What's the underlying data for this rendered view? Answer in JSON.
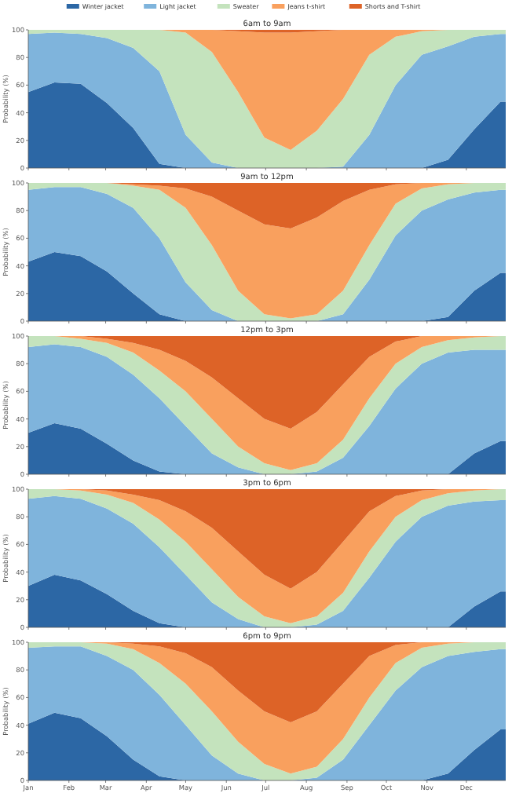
{
  "chart_data": [
    {
      "type": "area",
      "stacked": true,
      "title": "6am to 9am",
      "ylabel": "Probability (%)",
      "legend": "top",
      "tick_labels": "y",
      "xlim": [
        "--01-01",
        "--12-31"
      ],
      "xticks": [
        {
          "value": "--01-01",
          "label": null
        },
        {
          "value": "--02-01",
          "label": null
        },
        {
          "value": "--03-01",
          "label": null
        },
        {
          "value": "--04-01",
          "label": null
        },
        {
          "value": "--05-01",
          "label": null
        },
        {
          "value": "--06-01",
          "label": null
        },
        {
          "value": "--07-01",
          "label": null
        },
        {
          "value": "--08-01",
          "label": null
        },
        {
          "value": "--09-01",
          "label": null
        },
        {
          "value": "--10-01",
          "label": null
        },
        {
          "value": "--11-01",
          "label": null
        },
        {
          "value": "--12-01",
          "label": null
        }
      ],
      "ylim": [
        0,
        100
      ],
      "yticks": [
        0,
        20,
        40,
        60,
        80,
        100
      ],
      "x": [
        "--01-01",
        "--01-21",
        "--02-10",
        "--03-02",
        "--03-22",
        "--04-11",
        "--05-01",
        "--05-21",
        "--06-10",
        "--06-30",
        "--07-20",
        "--08-09",
        "--08-29",
        "--09-18",
        "--10-08",
        "--10-28",
        "--11-17",
        "--12-07",
        "--12-27",
        "--12-31"
      ],
      "series": [
        {
          "name": "Winter jacket",
          "color": "#2c67a5",
          "values": [
            55,
            62,
            61,
            47,
            29,
            3,
            0,
            0,
            0,
            0,
            0,
            0,
            0,
            0,
            0,
            0,
            6,
            28,
            48,
            48
          ]
        },
        {
          "name": "Light jacket",
          "color": "#7fb4dc",
          "values": [
            42,
            36,
            36,
            47,
            58,
            67,
            24,
            4,
            0,
            0,
            0,
            0,
            1,
            24,
            60,
            82,
            82,
            67,
            49,
            49
          ]
        },
        {
          "name": "Sweater",
          "color": "#c4e3bd",
          "values": [
            3,
            2,
            3,
            6,
            13,
            30,
            74,
            80,
            55,
            22,
            13,
            27,
            49,
            58,
            35,
            17,
            12,
            5,
            3,
            3
          ]
        },
        {
          "name": "Jeans t-shirt",
          "color": "#f9a05e",
          "values": [
            0,
            0,
            0,
            0,
            0,
            0,
            2,
            16,
            44,
            76,
            85,
            72,
            50,
            18,
            5,
            1,
            0,
            0,
            0,
            0
          ]
        },
        {
          "name": "Shorts and T-shirt",
          "color": "#dd6327",
          "values": [
            0,
            0,
            0,
            0,
            0,
            0,
            0,
            0,
            1,
            2,
            2,
            1,
            0,
            0,
            0,
            0,
            0,
            0,
            0,
            0
          ]
        }
      ]
    },
    {
      "type": "area",
      "stacked": true,
      "title": "9am to 12pm",
      "ylabel": "Probability (%)",
      "tick_labels": "y",
      "xlim": [
        "--01-01",
        "--12-31"
      ],
      "xticks": [
        {
          "value": "--01-01",
          "label": null
        },
        {
          "value": "--02-01",
          "label": null
        },
        {
          "value": "--03-01",
          "label": null
        },
        {
          "value": "--04-01",
          "label": null
        },
        {
          "value": "--05-01",
          "label": null
        },
        {
          "value": "--06-01",
          "label": null
        },
        {
          "value": "--07-01",
          "label": null
        },
        {
          "value": "--08-01",
          "label": null
        },
        {
          "value": "--09-01",
          "label": null
        },
        {
          "value": "--10-01",
          "label": null
        },
        {
          "value": "--11-01",
          "label": null
        },
        {
          "value": "--12-01",
          "label": null
        }
      ],
      "ylim": [
        0,
        100
      ],
      "yticks": [
        0,
        20,
        40,
        60,
        80,
        100
      ],
      "x": [
        "--01-01",
        "--01-21",
        "--02-10",
        "--03-02",
        "--03-22",
        "--04-11",
        "--05-01",
        "--05-21",
        "--06-10",
        "--06-30",
        "--07-20",
        "--08-09",
        "--08-29",
        "--09-18",
        "--10-08",
        "--10-28",
        "--11-17",
        "--12-07",
        "--12-27",
        "--12-31"
      ],
      "series": [
        {
          "color": "#2c67a5",
          "values": [
            43,
            50,
            47,
            36,
            20,
            5,
            0,
            0,
            0,
            0,
            0,
            0,
            0,
            0,
            0,
            0,
            3,
            22,
            35,
            35
          ]
        },
        {
          "color": "#7fb4dc",
          "values": [
            52,
            47,
            50,
            56,
            62,
            55,
            28,
            8,
            0,
            0,
            0,
            0,
            5,
            30,
            62,
            80,
            85,
            71,
            60,
            60
          ]
        },
        {
          "color": "#c4e3bd",
          "values": [
            5,
            3,
            3,
            8,
            16,
            35,
            54,
            47,
            22,
            5,
            2,
            5,
            17,
            25,
            23,
            16,
            11,
            7,
            5,
            5
          ]
        },
        {
          "color": "#f9a05e",
          "values": [
            0,
            0,
            0,
            0,
            1,
            3,
            14,
            35,
            58,
            65,
            65,
            70,
            65,
            40,
            14,
            4,
            1,
            0,
            0,
            0
          ]
        },
        {
          "color": "#dd6327",
          "values": [
            0,
            0,
            0,
            0,
            1,
            2,
            4,
            10,
            20,
            30,
            33,
            25,
            13,
            5,
            1,
            0,
            0,
            0,
            0,
            0
          ]
        }
      ]
    },
    {
      "type": "area",
      "stacked": true,
      "title": "12pm to 3pm",
      "ylabel": "Probability (%)",
      "tick_labels": "y",
      "xlim": [
        "--01-01",
        "--12-31"
      ],
      "xticks": [
        {
          "value": "--01-01",
          "label": null
        },
        {
          "value": "--02-01",
          "label": null
        },
        {
          "value": "--03-01",
          "label": null
        },
        {
          "value": "--04-01",
          "label": null
        },
        {
          "value": "--05-01",
          "label": null
        },
        {
          "value": "--06-01",
          "label": null
        },
        {
          "value": "--07-01",
          "label": null
        },
        {
          "value": "--08-01",
          "label": null
        },
        {
          "value": "--09-01",
          "label": null
        },
        {
          "value": "--10-01",
          "label": null
        },
        {
          "value": "--11-01",
          "label": null
        },
        {
          "value": "--12-01",
          "label": null
        }
      ],
      "ylim": [
        0,
        100
      ],
      "yticks": [
        0,
        20,
        40,
        60,
        80,
        100
      ],
      "x": [
        "--01-01",
        "--01-21",
        "--02-10",
        "--03-02",
        "--03-22",
        "--04-11",
        "--05-01",
        "--05-21",
        "--06-10",
        "--06-30",
        "--07-20",
        "--08-09",
        "--08-29",
        "--09-18",
        "--10-08",
        "--10-28",
        "--11-17",
        "--12-07",
        "--12-27",
        "--12-31"
      ],
      "series": [
        {
          "color": "#2c67a5",
          "values": [
            30,
            37,
            33,
            22,
            10,
            2,
            0,
            0,
            0,
            0,
            0,
            0,
            0,
            0,
            0,
            0,
            0,
            15,
            24,
            24
          ]
        },
        {
          "color": "#7fb4dc",
          "values": [
            62,
            57,
            59,
            63,
            62,
            53,
            35,
            15,
            5,
            0,
            0,
            2,
            12,
            35,
            62,
            80,
            88,
            75,
            66,
            66
          ]
        },
        {
          "color": "#c4e3bd",
          "values": [
            8,
            6,
            6,
            10,
            16,
            20,
            25,
            25,
            15,
            8,
            3,
            6,
            13,
            20,
            18,
            12,
            9,
            9,
            10,
            10
          ]
        },
        {
          "color": "#f9a05e",
          "values": [
            0,
            0,
            2,
            3,
            7,
            15,
            22,
            30,
            35,
            32,
            30,
            37,
            40,
            30,
            16,
            8,
            3,
            1,
            0,
            0
          ]
        },
        {
          "color": "#dd6327",
          "values": [
            0,
            0,
            0,
            2,
            5,
            10,
            18,
            30,
            45,
            60,
            67,
            55,
            35,
            15,
            4,
            0,
            0,
            0,
            0,
            0
          ]
        }
      ]
    },
    {
      "type": "area",
      "stacked": true,
      "title": "3pm to 6pm",
      "ylabel": "Probability (%)",
      "tick_labels": "y",
      "xlim": [
        "--01-01",
        "--12-31"
      ],
      "xticks": [
        {
          "value": "--01-01",
          "label": null
        },
        {
          "value": "--02-01",
          "label": null
        },
        {
          "value": "--03-01",
          "label": null
        },
        {
          "value": "--04-01",
          "label": null
        },
        {
          "value": "--05-01",
          "label": null
        },
        {
          "value": "--06-01",
          "label": null
        },
        {
          "value": "--07-01",
          "label": null
        },
        {
          "value": "--08-01",
          "label": null
        },
        {
          "value": "--09-01",
          "label": null
        },
        {
          "value": "--10-01",
          "label": null
        },
        {
          "value": "--11-01",
          "label": null
        },
        {
          "value": "--12-01",
          "label": null
        }
      ],
      "ylim": [
        0,
        100
      ],
      "yticks": [
        0,
        20,
        40,
        60,
        80,
        100
      ],
      "x": [
        "--01-01",
        "--01-21",
        "--02-10",
        "--03-02",
        "--03-22",
        "--04-11",
        "--05-01",
        "--05-21",
        "--06-10",
        "--06-30",
        "--07-20",
        "--08-09",
        "--08-29",
        "--09-18",
        "--10-08",
        "--10-28",
        "--11-17",
        "--12-07",
        "--12-27",
        "--12-31"
      ],
      "series": [
        {
          "color": "#2c67a5",
          "values": [
            30,
            38,
            34,
            24,
            12,
            3,
            0,
            0,
            0,
            0,
            0,
            0,
            0,
            0,
            0,
            0,
            0,
            15,
            26,
            26
          ]
        },
        {
          "color": "#7fb4dc",
          "values": [
            63,
            57,
            59,
            62,
            63,
            55,
            38,
            18,
            6,
            0,
            0,
            2,
            12,
            36,
            62,
            80,
            88,
            76,
            66,
            66
          ]
        },
        {
          "color": "#c4e3bd",
          "values": [
            7,
            5,
            6,
            10,
            15,
            20,
            24,
            24,
            16,
            8,
            3,
            6,
            13,
            19,
            18,
            12,
            9,
            8,
            8,
            8
          ]
        },
        {
          "color": "#f9a05e",
          "values": [
            0,
            0,
            1,
            3,
            6,
            14,
            22,
            30,
            33,
            30,
            25,
            32,
            37,
            29,
            15,
            7,
            3,
            1,
            0,
            0
          ]
        },
        {
          "color": "#dd6327",
          "values": [
            0,
            0,
            0,
            1,
            4,
            8,
            16,
            28,
            45,
            62,
            72,
            60,
            38,
            16,
            5,
            1,
            0,
            0,
            0,
            0
          ]
        }
      ]
    },
    {
      "type": "area",
      "stacked": true,
      "title": "6pm to 9pm",
      "ylabel": "Probability (%)",
      "xlim": [
        "--01-01",
        "--12-31"
      ],
      "xticks": [
        {
          "value": "--01-01",
          "label": "Jan"
        },
        {
          "value": "--02-01",
          "label": "Feb"
        },
        {
          "value": "--03-01",
          "label": "Mar"
        },
        {
          "value": "--04-01",
          "label": "Apr"
        },
        {
          "value": "--05-01",
          "label": "May"
        },
        {
          "value": "--06-01",
          "label": "Jun"
        },
        {
          "value": "--07-01",
          "label": "Jul"
        },
        {
          "value": "--08-01",
          "label": "Aug"
        },
        {
          "value": "--09-01",
          "label": "Sep"
        },
        {
          "value": "--10-01",
          "label": "Oct"
        },
        {
          "value": "--11-01",
          "label": "Nov"
        },
        {
          "value": "--12-01",
          "label": "Dec"
        }
      ],
      "ylim": [
        0,
        100
      ],
      "yticks": [
        0,
        20,
        40,
        60,
        80,
        100
      ],
      "x": [
        "--01-01",
        "--01-21",
        "--02-10",
        "--03-02",
        "--03-22",
        "--04-11",
        "--05-01",
        "--05-21",
        "--06-10",
        "--06-30",
        "--07-20",
        "--08-09",
        "--08-29",
        "--09-18",
        "--10-08",
        "--10-28",
        "--11-17",
        "--12-07",
        "--12-27",
        "--12-31"
      ],
      "series": [
        {
          "color": "#2c67a5",
          "values": [
            41,
            49,
            45,
            32,
            15,
            3,
            0,
            0,
            0,
            0,
            0,
            0,
            0,
            0,
            0,
            0,
            5,
            22,
            37,
            37
          ]
        },
        {
          "color": "#7fb4dc",
          "values": [
            55,
            48,
            52,
            58,
            65,
            59,
            40,
            18,
            5,
            0,
            0,
            2,
            15,
            40,
            65,
            82,
            85,
            71,
            58,
            58
          ]
        },
        {
          "color": "#c4e3bd",
          "values": [
            4,
            3,
            3,
            9,
            15,
            23,
            30,
            32,
            23,
            12,
            5,
            8,
            15,
            20,
            20,
            14,
            9,
            7,
            5,
            5
          ]
        },
        {
          "color": "#f9a05e",
          "values": [
            0,
            0,
            0,
            1,
            4,
            12,
            22,
            32,
            37,
            38,
            37,
            40,
            40,
            30,
            13,
            4,
            1,
            0,
            0,
            0
          ]
        },
        {
          "color": "#dd6327",
          "values": [
            0,
            0,
            0,
            0,
            1,
            3,
            8,
            18,
            35,
            50,
            58,
            50,
            30,
            10,
            2,
            0,
            0,
            0,
            0,
            0
          ]
        }
      ]
    }
  ]
}
